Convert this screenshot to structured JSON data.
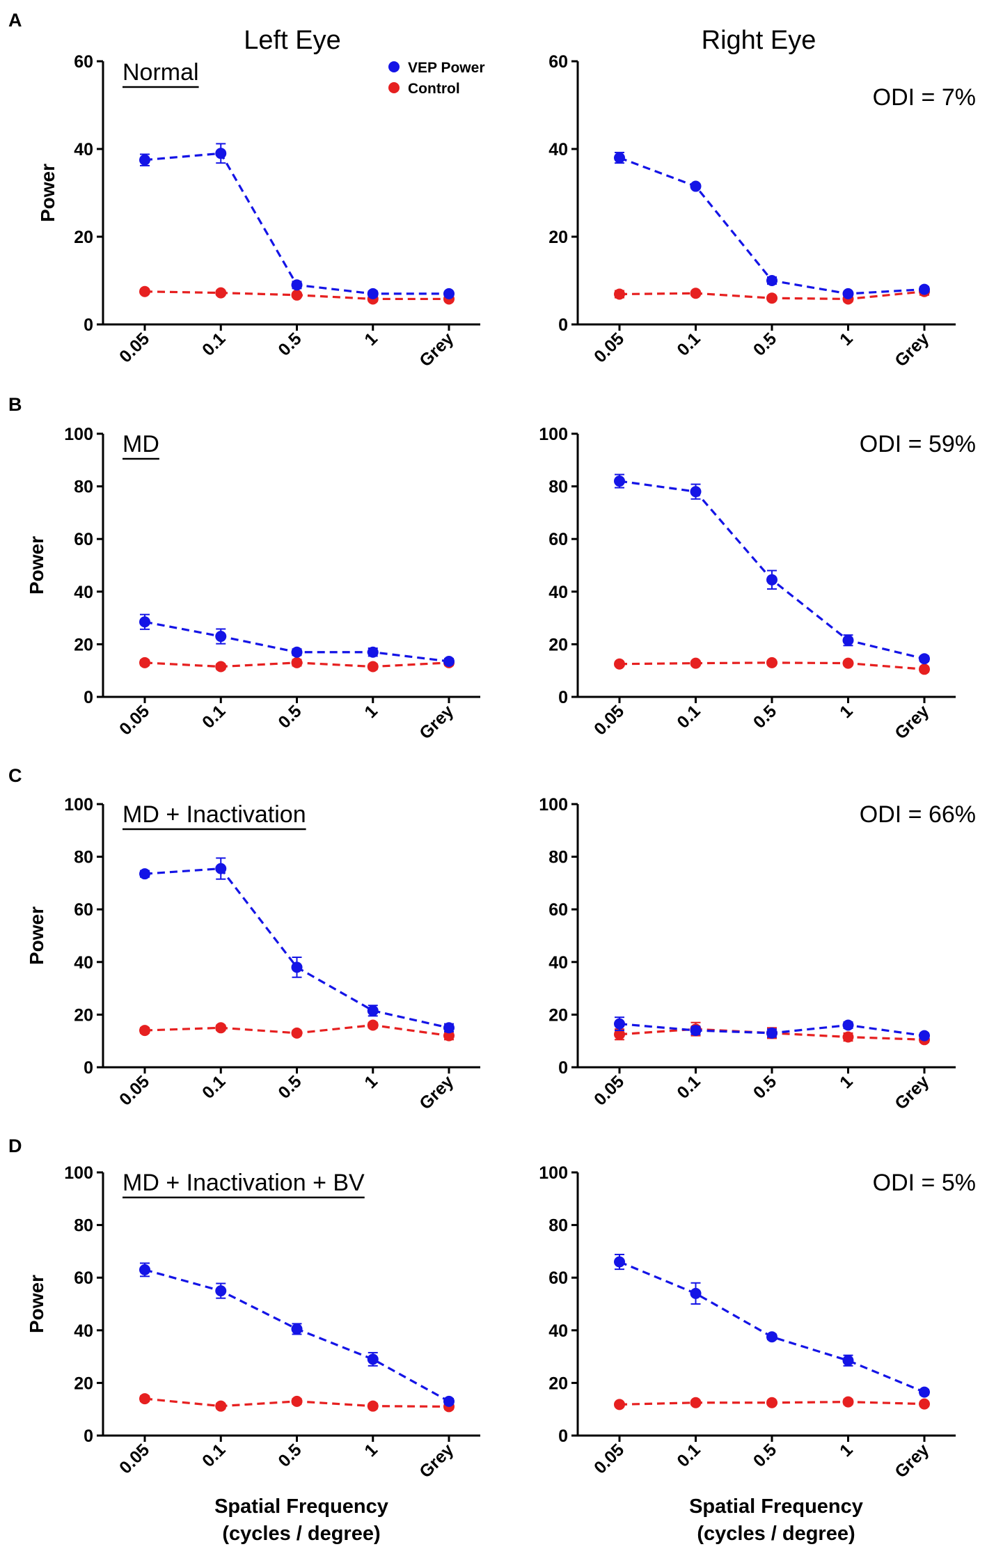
{
  "column_titles": [
    "Left Eye",
    "Right Eye"
  ],
  "xlabel_line1": "Spatial Frequency",
  "xlabel_line2": "(cycles / degree)",
  "legend": {
    "entries": [
      {
        "name": "VEP Power",
        "color": "#1414e6"
      },
      {
        "name": "Control",
        "color": "#e62020"
      }
    ]
  },
  "colors": {
    "vep": "#1414e6",
    "control": "#e62020"
  },
  "chart_data": [
    {
      "type": "line",
      "panel": "A",
      "eye": "Left Eye",
      "condition": "Normal",
      "odi": "",
      "categories": [
        "0.05",
        "0.1",
        "0.5",
        "1",
        "Grey"
      ],
      "ylabel": "Power",
      "ylim": [
        0,
        60
      ],
      "yticks": [
        0,
        20,
        40,
        60
      ],
      "series": [
        {
          "name": "VEP Power",
          "values": [
            37.5,
            39,
            9,
            7,
            7
          ],
          "errors": [
            1.3,
            2.2,
            0.8,
            0.6,
            0.5
          ]
        },
        {
          "name": "Control",
          "values": [
            7.5,
            7.2,
            6.7,
            5.8,
            5.8
          ],
          "errors": [
            0.5,
            0.5,
            0.5,
            0.5,
            0.5
          ]
        }
      ]
    },
    {
      "type": "line",
      "panel": "A",
      "eye": "Right Eye",
      "condition": "",
      "odi": "ODI = 7%",
      "categories": [
        "0.05",
        "0.1",
        "0.5",
        "1",
        "Grey"
      ],
      "ylabel": "",
      "ylim": [
        0,
        60
      ],
      "yticks": [
        0,
        20,
        40,
        60
      ],
      "series": [
        {
          "name": "VEP Power",
          "values": [
            38,
            31.5,
            10,
            7,
            8
          ],
          "errors": [
            1.2,
            0.5,
            0.8,
            0.5,
            0.6
          ]
        },
        {
          "name": "Control",
          "values": [
            6.9,
            7.1,
            6,
            5.8,
            7.5
          ],
          "errors": [
            0.8,
            0.5,
            0.5,
            0.6,
            0.8
          ]
        }
      ]
    },
    {
      "type": "line",
      "panel": "B",
      "eye": "Left Eye",
      "condition": "MD",
      "odi": "",
      "categories": [
        "0.05",
        "0.1",
        "0.5",
        "1",
        "Grey"
      ],
      "ylabel": "Power",
      "ylim": [
        0,
        100
      ],
      "yticks": [
        0,
        20,
        40,
        60,
        80,
        100
      ],
      "series": [
        {
          "name": "VEP Power",
          "values": [
            28.5,
            23,
            17,
            17,
            13.5
          ],
          "errors": [
            2.8,
            2.8,
            1.2,
            1.5,
            1
          ]
        },
        {
          "name": "Control",
          "values": [
            13,
            11.5,
            13,
            11.5,
            13
          ],
          "errors": [
            1,
            1,
            1.2,
            1,
            1
          ]
        }
      ]
    },
    {
      "type": "line",
      "panel": "B",
      "eye": "Right Eye",
      "condition": "",
      "odi": "ODI = 59%",
      "categories": [
        "0.05",
        "0.1",
        "0.5",
        "1",
        "Grey"
      ],
      "ylabel": "",
      "ylim": [
        0,
        100
      ],
      "yticks": [
        0,
        20,
        40,
        60,
        80,
        100
      ],
      "series": [
        {
          "name": "VEP Power",
          "values": [
            82,
            78,
            44.5,
            21.5,
            14.5
          ],
          "errors": [
            2.5,
            2.8,
            3.5,
            2,
            1
          ]
        },
        {
          "name": "Control",
          "values": [
            12.5,
            12.8,
            13,
            12.8,
            10.5
          ],
          "errors": [
            0.8,
            0.8,
            0.8,
            0.8,
            1
          ]
        }
      ]
    },
    {
      "type": "line",
      "panel": "C",
      "eye": "Left Eye",
      "condition": "MD + Inactivation",
      "odi": "",
      "categories": [
        "0.05",
        "0.1",
        "0.5",
        "1",
        "Grey"
      ],
      "ylabel": "Power",
      "ylim": [
        0,
        100
      ],
      "yticks": [
        0,
        20,
        40,
        60,
        80,
        100
      ],
      "series": [
        {
          "name": "VEP Power",
          "values": [
            73.5,
            75.5,
            38,
            21.5,
            15
          ],
          "errors": [
            1.2,
            4,
            3.8,
            2,
            1.5
          ]
        },
        {
          "name": "Control",
          "values": [
            14,
            15,
            13,
            16,
            12
          ],
          "errors": [
            1,
            1,
            1,
            1,
            1.5
          ]
        }
      ]
    },
    {
      "type": "line",
      "panel": "C",
      "eye": "Right Eye",
      "condition": "",
      "odi": "ODI = 66%",
      "categories": [
        "0.05",
        "0.1",
        "0.5",
        "1",
        "Grey"
      ],
      "ylabel": "",
      "ylim": [
        0,
        100
      ],
      "yticks": [
        0,
        20,
        40,
        60,
        80,
        100
      ],
      "series": [
        {
          "name": "VEP Power",
          "values": [
            16.5,
            14,
            13,
            16,
            12
          ],
          "errors": [
            2.5,
            1.5,
            1.5,
            1.2,
            1
          ]
        },
        {
          "name": "Control",
          "values": [
            12.5,
            14.5,
            13,
            11.5,
            10.5
          ],
          "errors": [
            2,
            2.5,
            2,
            1.5,
            1
          ]
        }
      ]
    },
    {
      "type": "line",
      "panel": "D",
      "eye": "Left Eye",
      "condition": "MD + Inactivation + BV",
      "odi": "",
      "categories": [
        "0.05",
        "0.1",
        "0.5",
        "1",
        "Grey"
      ],
      "ylabel": "Power",
      "ylim": [
        0,
        100
      ],
      "yticks": [
        0,
        20,
        40,
        60,
        80,
        100
      ],
      "series": [
        {
          "name": "VEP Power",
          "values": [
            63,
            55,
            40.5,
            29,
            13
          ],
          "errors": [
            2.5,
            2.8,
            2,
            2.5,
            1
          ]
        },
        {
          "name": "Control",
          "values": [
            14,
            11.2,
            13,
            11.2,
            11
          ],
          "errors": [
            1,
            1,
            1,
            1,
            1
          ]
        }
      ]
    },
    {
      "type": "line",
      "panel": "D",
      "eye": "Right Eye",
      "condition": "",
      "odi": "ODI = 5%",
      "categories": [
        "0.05",
        "0.1",
        "0.5",
        "1",
        "Grey"
      ],
      "ylabel": "",
      "ylim": [
        0,
        100
      ],
      "yticks": [
        0,
        20,
        40,
        60,
        80,
        100
      ],
      "series": [
        {
          "name": "VEP Power",
          "values": [
            66,
            54,
            37.5,
            28.5,
            16.5
          ],
          "errors": [
            2.8,
            4,
            1,
            2,
            1
          ]
        },
        {
          "name": "Control",
          "values": [
            11.8,
            12.5,
            12.5,
            12.8,
            12
          ],
          "errors": [
            0.8,
            0.8,
            0.8,
            1,
            0.8
          ]
        }
      ]
    }
  ]
}
